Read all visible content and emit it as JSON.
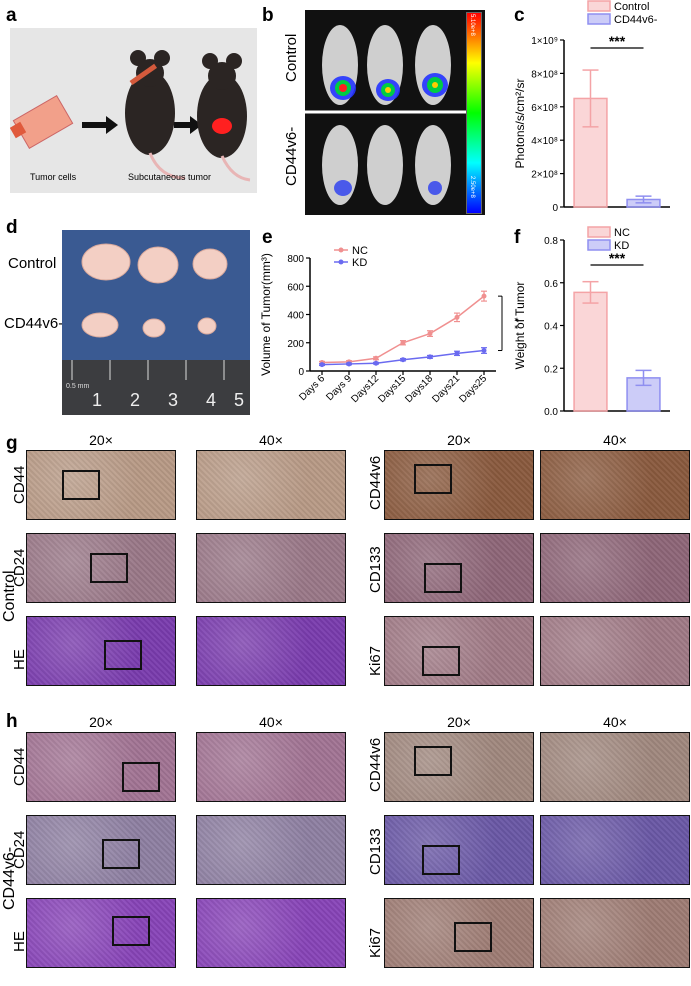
{
  "panels": {
    "a": {
      "letter": "a",
      "tumor_cells": "Tumor cells",
      "subcutaneous": "Subcutaneous tumor"
    },
    "b": {
      "letter": "b",
      "control": "Control",
      "cd44v6": "CD44v6-",
      "scale_top": "5.10e+8",
      "scale_bottom": "2.50e+8"
    },
    "d": {
      "letter": "d",
      "control": "Control",
      "cd44v6": "CD44v6-",
      "ruler": [
        "1",
        "2",
        "3",
        "4",
        "5"
      ],
      "ruler_unit": "0.5 mm"
    },
    "g": {
      "letter": "g",
      "group": "Control"
    },
    "h": {
      "letter": "h",
      "group": "CD44v6-"
    }
  },
  "ihc": {
    "mag_left": "20×",
    "mag_right": "40×",
    "left_markers": [
      "CD44",
      "CD24",
      "HE"
    ],
    "right_markers": [
      "CD44v6",
      "CD133",
      "Ki67"
    ]
  },
  "chart_data": [
    {
      "type": "bar",
      "panel": "c",
      "letter": "c",
      "categories": [
        "Control",
        "CD44v6-"
      ],
      "values": [
        650000000,
        45000000
      ],
      "errors": [
        170000000,
        20000000
      ],
      "ylabel": "Photons/s/cm²/sr",
      "yticks": [
        "0",
        "2×10⁸",
        "4×10⁸",
        "6×10⁸",
        "8×10⁸",
        "1×10⁹"
      ],
      "ylim": [
        0,
        1000000000
      ],
      "significance": "***",
      "legend": [
        "Control",
        "CD44v6-"
      ],
      "colors": [
        "#f4a3a6",
        "#8f8ff0"
      ]
    },
    {
      "type": "line",
      "panel": "e",
      "letter": "e",
      "categories": [
        "Days 6",
        "Days 9",
        "Days12",
        "Days15",
        "Days18",
        "Days21",
        "Days25"
      ],
      "series": [
        {
          "name": "NC",
          "values": [
            60,
            65,
            90,
            200,
            265,
            380,
            530
          ],
          "errors": [
            8,
            8,
            10,
            15,
            20,
            30,
            35
          ],
          "color": "#f09090"
        },
        {
          "name": "KD",
          "values": [
            45,
            50,
            55,
            80,
            100,
            125,
            145
          ],
          "errors": [
            6,
            6,
            6,
            8,
            10,
            15,
            20
          ],
          "color": "#6a6af0"
        }
      ],
      "ylabel": "Volume of Tumor(mm³)",
      "yticks": [
        "0",
        "200",
        "400",
        "600",
        "800"
      ],
      "ylim": [
        0,
        800
      ],
      "significance": "* *"
    },
    {
      "type": "bar",
      "panel": "f",
      "letter": "f",
      "categories": [
        "NC",
        "KD"
      ],
      "values": [
        0.555,
        0.155
      ],
      "errors": [
        0.05,
        0.035
      ],
      "ylabel": "Weight of Tumor",
      "yticks": [
        "0.0",
        "0.2",
        "0.4",
        "0.6",
        "0.8"
      ],
      "ylim": [
        0,
        0.8
      ],
      "significance": "***",
      "legend": [
        "NC",
        "KD"
      ],
      "colors": [
        "#f4a3a6",
        "#8f8ff0"
      ]
    }
  ]
}
